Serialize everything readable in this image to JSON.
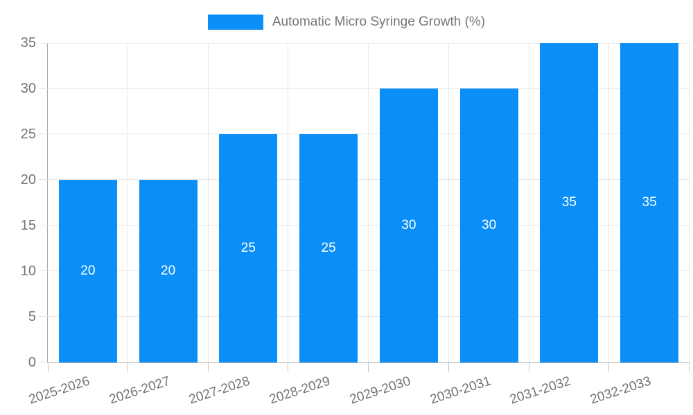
{
  "legend": {
    "label": "Automatic Micro Syringe Growth (%)"
  },
  "chart_data": {
    "type": "bar",
    "title": "Automatic Micro Syringe Growth (%)",
    "series_name": "Automatic Micro Syringe Growth (%)",
    "categories": [
      "2025-2026",
      "2026-2027",
      "2027-2028",
      "2028-2029",
      "2029-2030",
      "2030-2031",
      "2031-2032",
      "2032-2033"
    ],
    "values": [
      20,
      20,
      25,
      25,
      30,
      30,
      35,
      35
    ],
    "bar_labels": [
      "20",
      "20",
      "25",
      "25",
      "30",
      "30",
      "35",
      "35"
    ],
    "xlabel": "",
    "ylabel": "",
    "ylim": [
      0,
      35
    ],
    "yticks": [
      0,
      5,
      10,
      15,
      20,
      25,
      30,
      35
    ],
    "grid": true,
    "legend_position": "top-center",
    "colors": {
      "bar": "#0a8ff9",
      "grid": "#e6e6e6",
      "axis": "#a8a8a8",
      "tick": "#c4c4c4",
      "text": "#757575",
      "value_label": "#ffffff",
      "background": "#ffffff"
    }
  }
}
